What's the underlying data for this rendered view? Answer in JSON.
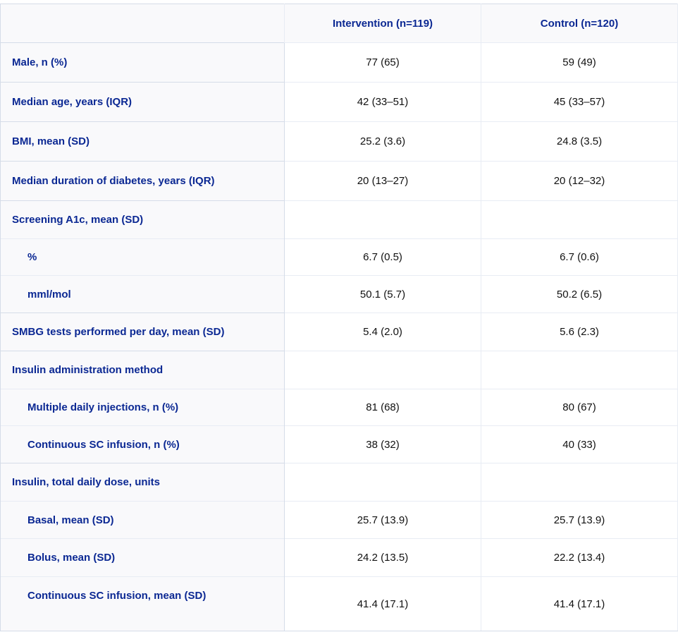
{
  "table": {
    "headers": [
      "",
      "Intervention (n=119)",
      "Control (n=120)"
    ],
    "rows": [
      {
        "label": "Male, n (%)",
        "intervention": "77 (65)",
        "control": "59 (49)"
      },
      {
        "label": "Median age, years (IQR)",
        "intervention": "42 (33–51)",
        "control": "45 (33–57)"
      },
      {
        "label": "BMI, mean (SD)",
        "intervention": "25.2 (3.6)",
        "control": "24.8 (3.5)"
      },
      {
        "label": "Median duration of diabetes, years (IQR)",
        "intervention": "20 (13–27)",
        "control": "20 (12–32)"
      },
      {
        "label": "Screening A1c, mean (SD)",
        "intervention": "",
        "control": ""
      },
      {
        "label": "%",
        "intervention": "6.7 (0.5)",
        "control": "6.7 (0.6)"
      },
      {
        "label": "mml/mol",
        "intervention": "50.1 (5.7)",
        "control": "50.2 (6.5)"
      },
      {
        "label": "SMBG tests performed per day, mean (SD)",
        "intervention": "5.4 (2.0)",
        "control": "5.6 (2.3)"
      },
      {
        "label": "Insulin administration method",
        "intervention": "",
        "control": ""
      },
      {
        "label": "Multiple daily injections, n (%)",
        "intervention": "81 (68)",
        "control": "80 (67)"
      },
      {
        "label": "Continuous SC infusion, n (%)",
        "intervention": "38 (32)",
        "control": "40 (33)"
      },
      {
        "label": "Insulin, total daily dose, units",
        "intervention": "",
        "control": ""
      },
      {
        "label": "Basal, mean (SD)",
        "intervention": "25.7 (13.9)",
        "control": "25.7 (13.9)"
      },
      {
        "label": "Bolus, mean (SD)",
        "intervention": "24.2 (13.5)",
        "control": "22.2 (13.4)"
      },
      {
        "label": "Continuous SC infusion, mean (SD)",
        "intervention": "41.4 (17.1)",
        "control": "41.4 (17.1)"
      }
    ]
  }
}
